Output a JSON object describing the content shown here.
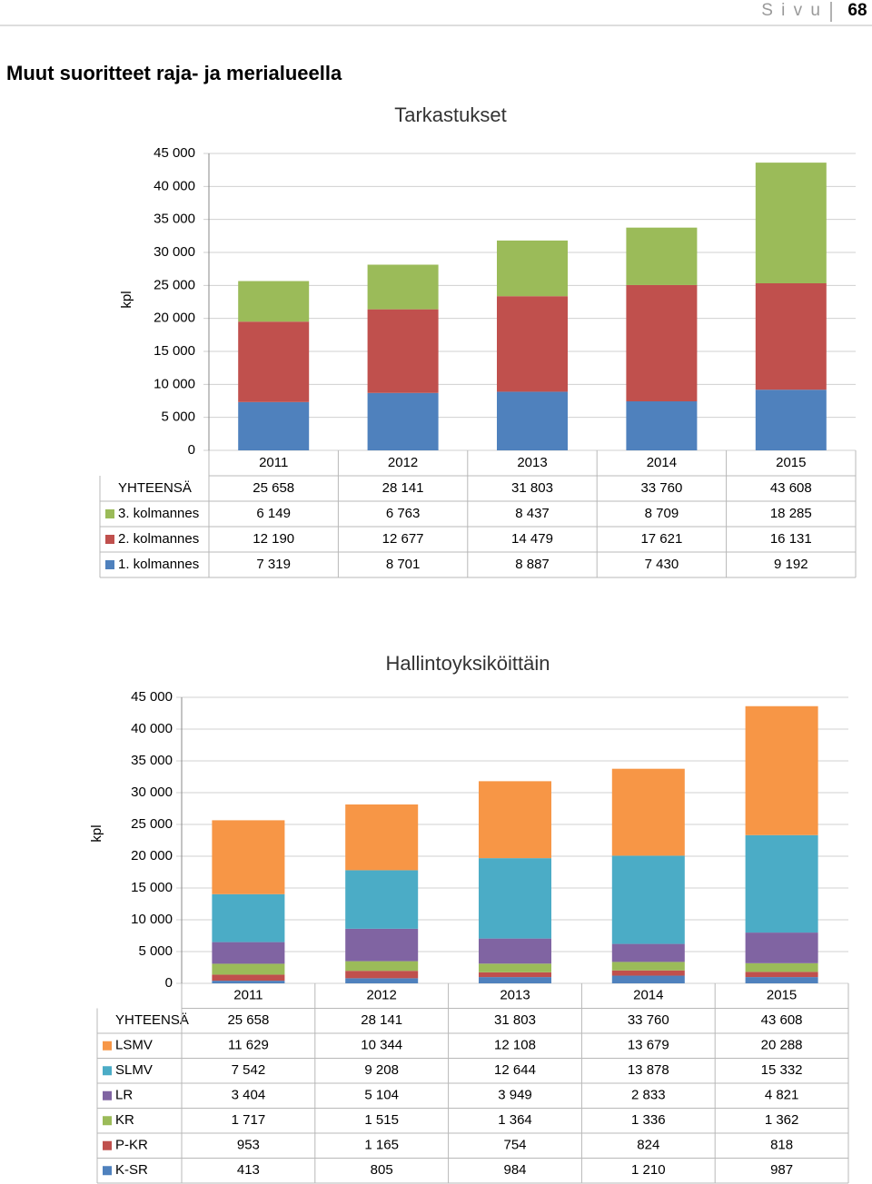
{
  "header": {
    "page_label": "S i v u",
    "page_number": "68"
  },
  "heading": "Muut suoritteet raja- ja merialueella",
  "chart_data": [
    {
      "type": "bar",
      "stacked": true,
      "title": "Tarkastukset",
      "y_label": "kpl",
      "grid": true,
      "categories": [
        "2011",
        "2012",
        "2013",
        "2014",
        "2015"
      ],
      "ylim": [
        0,
        45000
      ],
      "yticks": [
        0,
        {
          "value": 5000,
          "label": "5 000"
        },
        {
          "value": 10000,
          "label": "10 000"
        },
        {
          "value": 15000,
          "label": "15 000"
        },
        {
          "value": 20000,
          "label": "20 000"
        },
        {
          "value": 25000,
          "label": "25 000"
        },
        {
          "value": 30000,
          "label": "30 000"
        },
        {
          "value": 35000,
          "label": "35 000"
        },
        {
          "value": 40000,
          "label": "40 000"
        },
        {
          "value": 45000,
          "label": "45 000"
        }
      ],
      "totals": {
        "name": "YHTEENSÄ",
        "values": [
          25658,
          28141,
          31803,
          33760,
          43608
        ],
        "value_labels": [
          "25 658",
          "28 141",
          "31 803",
          "33 760",
          "43 608"
        ]
      },
      "series": [
        {
          "name": "1. kolmannes",
          "color": "#4f81bd",
          "values": [
            7319,
            8701,
            8887,
            7430,
            9192
          ],
          "value_labels": [
            "7 319",
            "8 701",
            "8 887",
            "7 430",
            "9 192"
          ]
        },
        {
          "name": "2. kolmannes",
          "color": "#c0504d",
          "values": [
            12190,
            12677,
            14479,
            17621,
            16131
          ],
          "value_labels": [
            "12 190",
            "12 677",
            "14 479",
            "17 621",
            "16 131"
          ]
        },
        {
          "name": "3. kolmannes",
          "color": "#9bbb59",
          "values": [
            6149,
            6763,
            8437,
            8709,
            18285
          ],
          "value_labels": [
            "6 149",
            "6 763",
            "8 437",
            "8 709",
            "18 285"
          ]
        }
      ]
    },
    {
      "type": "bar",
      "stacked": true,
      "title": "Hallintoyksiköittäin",
      "y_label": "kpl",
      "grid": true,
      "categories": [
        "2011",
        "2012",
        "2013",
        "2014",
        "2015"
      ],
      "ylim": [
        0,
        45000
      ],
      "yticks": [
        0,
        {
          "value": 5000,
          "label": "5 000"
        },
        {
          "value": 10000,
          "label": "10 000"
        },
        {
          "value": 15000,
          "label": "15 000"
        },
        {
          "value": 20000,
          "label": "20 000"
        },
        {
          "value": 25000,
          "label": "25 000"
        },
        {
          "value": 30000,
          "label": "30 000"
        },
        {
          "value": 35000,
          "label": "35 000"
        },
        {
          "value": 40000,
          "label": "40 000"
        },
        {
          "value": 45000,
          "label": "45 000"
        }
      ],
      "totals": {
        "name": "YHTEENSÄ",
        "values": [
          25658,
          28141,
          31803,
          33760,
          43608
        ],
        "value_labels": [
          "25 658",
          "28 141",
          "31 803",
          "33 760",
          "43 608"
        ]
      },
      "series": [
        {
          "name": "K-SR",
          "color": "#4f81bd",
          "values": [
            413,
            805,
            984,
            1210,
            987
          ],
          "value_labels": [
            "413",
            "805",
            "984",
            "1 210",
            "987"
          ]
        },
        {
          "name": "P-KR",
          "color": "#c0504d",
          "values": [
            953,
            1165,
            754,
            824,
            818
          ],
          "value_labels": [
            "953",
            "1 165",
            "754",
            "824",
            "818"
          ]
        },
        {
          "name": "KR",
          "color": "#9bbb59",
          "values": [
            1717,
            1515,
            1364,
            1336,
            1362
          ],
          "value_labels": [
            "1 717",
            "1 515",
            "1 364",
            "1 336",
            "1 362"
          ]
        },
        {
          "name": "LR",
          "color": "#8064a2",
          "values": [
            3404,
            5104,
            3949,
            2833,
            4821
          ],
          "value_labels": [
            "3 404",
            "5 104",
            "3 949",
            "2 833",
            "4 821"
          ]
        },
        {
          "name": "SLMV",
          "color": "#4bacc6",
          "values": [
            7542,
            9208,
            12644,
            13878,
            15332
          ],
          "value_labels": [
            "7 542",
            "9 208",
            "12 644",
            "13 878",
            "15 332"
          ]
        },
        {
          "name": "LSMV",
          "color": "#f79646",
          "values": [
            11629,
            10344,
            12108,
            13679,
            20288
          ],
          "value_labels": [
            "11 629",
            "10 344",
            "12 108",
            "13 679",
            "20 288"
          ]
        }
      ]
    }
  ]
}
